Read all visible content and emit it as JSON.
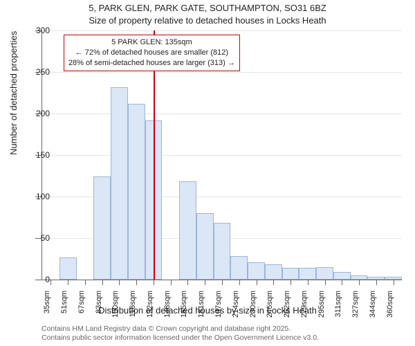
{
  "title": {
    "main": "5, PARK GLEN, PARK GATE, SOUTHAMPTON, SO31 6BZ",
    "sub": "Size of property relative to detached houses in Locks Heath"
  },
  "chart": {
    "type": "histogram",
    "y": {
      "label": "Number of detached properties",
      "min": 0,
      "max": 300,
      "tick_step": 50,
      "tick_labels": [
        "0",
        "50",
        "100",
        "150",
        "200",
        "250",
        "300"
      ],
      "grid_color": "rgba(0,0,0,0.10)",
      "axis_color": "#666666"
    },
    "x": {
      "label": "Distribution of detached houses by size in Locks Heath",
      "categories": [
        "35sqm",
        "51sqm",
        "67sqm",
        "83sqm",
        "100sqm",
        "116sqm",
        "132sqm",
        "148sqm",
        "165sqm",
        "181sqm",
        "197sqm",
        "214sqm",
        "230sqm",
        "246sqm",
        "262sqm",
        "279sqm",
        "295sqm",
        "311sqm",
        "327sqm",
        "344sqm",
        "360sqm"
      ],
      "axis_color": "#666666"
    },
    "bars": {
      "values": [
        0,
        27,
        0,
        124,
        232,
        212,
        192,
        0,
        118,
        80,
        68,
        28,
        21,
        18,
        14,
        14,
        15,
        9,
        5,
        3,
        3
      ],
      "fill_color": "#dbe7f6",
      "border_color": "#9ab6d8",
      "border_width": 1,
      "width_ratio": 1.0
    },
    "reference_line": {
      "category": "132sqm",
      "color": "#cc0000",
      "width": 2
    },
    "callout": {
      "lines": [
        "5 PARK GLEN: 135sqm",
        "← 72% of detached houses are smaller (812)",
        "28% of semi-detached houses are larger (313) →"
      ],
      "border_color": "#cc0000",
      "border_width": 1,
      "background_color": "#ffffff"
    },
    "background_color": "#ffffff"
  },
  "footer": {
    "line1": "Contains HM Land Registry data © Crown copyright and database right 2025.",
    "line2": "Contains public sector information licensed under the Open Government Licence v3.0."
  },
  "label_fontsize": 13,
  "tick_fontsize": 12
}
